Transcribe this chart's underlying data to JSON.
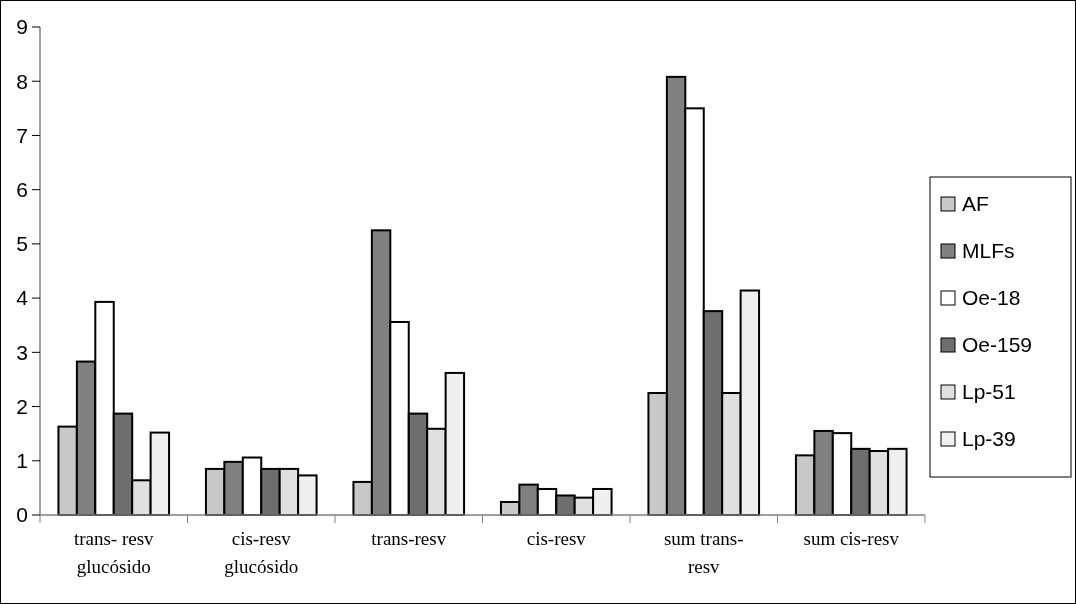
{
  "chart_data": {
    "type": "bar",
    "categories": [
      "trans- resv glucósido",
      "cis-resv glucósido",
      "trans-resv",
      "cis-resv",
      "sum trans-resv",
      "sum cis-resv"
    ],
    "series": [
      {
        "name": "AF",
        "color": "#c8c8c8",
        "values": [
          1.63,
          0.85,
          0.61,
          0.24,
          2.25,
          1.1
        ]
      },
      {
        "name": "MLFs",
        "color": "#808080",
        "values": [
          2.83,
          0.98,
          5.25,
          0.56,
          8.08,
          1.55
        ]
      },
      {
        "name": "Oe-18",
        "color": "#ffffff",
        "values": [
          3.93,
          1.06,
          3.56,
          0.48,
          7.5,
          1.51
        ]
      },
      {
        "name": "Oe-159",
        "color": "#6e6e6e",
        "values": [
          1.87,
          0.85,
          1.87,
          0.36,
          3.76,
          1.22
        ]
      },
      {
        "name": "Lp-51",
        "color": "#e0e0e0",
        "values": [
          0.64,
          0.85,
          1.59,
          0.32,
          2.25,
          1.18
        ]
      },
      {
        "name": "Lp-39",
        "color": "#f0f0f0",
        "values": [
          1.52,
          0.73,
          2.62,
          0.48,
          4.14,
          1.22
        ]
      }
    ],
    "ylim": [
      0,
      9
    ],
    "yticks": [
      0,
      1,
      2,
      3,
      4,
      5,
      6,
      7,
      8,
      9
    ],
    "legend": "right",
    "grid": false
  }
}
